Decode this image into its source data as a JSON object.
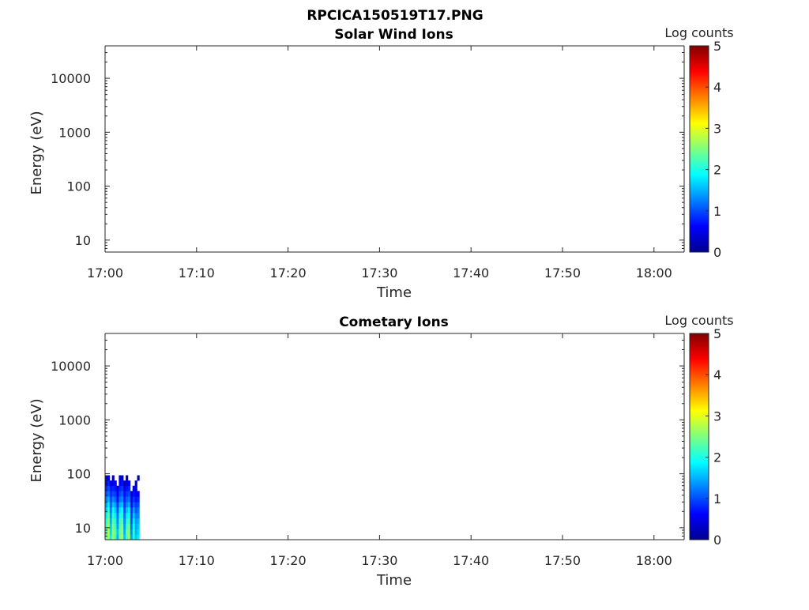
{
  "figure_title": "RPCICA150519T17.PNG",
  "chart_data": [
    {
      "type": "heatmap",
      "title": "Solar Wind Ions",
      "xlabel": "Time",
      "ylabel": "Energy (eV)",
      "x_unit": "minutes after 17:00",
      "xlim": [
        0,
        63.3
      ],
      "ylim": [
        6,
        40000
      ],
      "yscale": "log",
      "xticks": [
        0,
        10,
        20,
        30,
        40,
        50,
        60
      ],
      "xtick_labels": [
        "17:00",
        "17:10",
        "17:20",
        "17:30",
        "17:40",
        "17:50",
        "18:00"
      ],
      "yticks": [
        10,
        100,
        1000,
        10000
      ],
      "ytick_labels": [
        "10",
        "100",
        "1000",
        "10000"
      ],
      "colorbar": {
        "label": "Log counts",
        "range": [
          0,
          5
        ],
        "ticks": [
          "0",
          "1",
          "2",
          "3",
          "4",
          "5"
        ],
        "colormap": "jet"
      },
      "time_bins": [],
      "energy_bins": [],
      "values": []
    },
    {
      "type": "heatmap",
      "title": "Cometary Ions",
      "xlabel": "Time",
      "ylabel": "Energy (eV)",
      "x_unit": "minutes after 17:00",
      "xlim": [
        0,
        63.3
      ],
      "ylim": [
        6,
        40000
      ],
      "yscale": "log",
      "xticks": [
        0,
        10,
        20,
        30,
        40,
        50,
        60
      ],
      "xtick_labels": [
        "17:00",
        "17:10",
        "17:20",
        "17:30",
        "17:40",
        "17:50",
        "18:00"
      ],
      "yticks": [
        10,
        100,
        1000,
        10000
      ],
      "ytick_labels": [
        "10",
        "100",
        "1000",
        "10000"
      ],
      "colorbar": {
        "label": "Log counts",
        "range": [
          0,
          5
        ],
        "ticks": [
          "0",
          "1",
          "2",
          "3",
          "4",
          "5"
        ],
        "colormap": "jet"
      },
      "time_bins": [
        0,
        0.25,
        0.5,
        0.75,
        1.0,
        1.25,
        1.5,
        1.75,
        2.0,
        2.25,
        2.5,
        2.75,
        3.0,
        3.25,
        3.5
      ],
      "time_bin_width": 0.25,
      "energy_bins": [
        6,
        7.5,
        9.5,
        12,
        15,
        19,
        24,
        30,
        38,
        48,
        60,
        75
      ],
      "values": [
        [
          2.4,
          2.6,
          1.8,
          2.7,
          2.2,
          1.5,
          2.5,
          2.7,
          1.6,
          2.3,
          2.6,
          1.4,
          2.0,
          1.6,
          1.8
        ],
        [
          2.3,
          2.7,
          1.7,
          2.6,
          2.3,
          1.6,
          2.4,
          2.6,
          1.5,
          2.4,
          2.5,
          1.3,
          2.1,
          1.5,
          1.7
        ],
        [
          2.2,
          2.6,
          1.6,
          2.5,
          2.1,
          1.4,
          2.3,
          2.5,
          1.4,
          2.2,
          2.4,
          1.2,
          1.9,
          1.4,
          1.6
        ],
        [
          2.0,
          2.5,
          1.5,
          2.3,
          2.0,
          1.3,
          2.2,
          2.3,
          1.3,
          2.0,
          2.2,
          1.0,
          1.8,
          1.3,
          1.5
        ],
        [
          1.8,
          2.3,
          1.4,
          2.1,
          1.8,
          1.2,
          2.0,
          2.1,
          1.2,
          1.8,
          2.0,
          0.9,
          1.6,
          1.2,
          1.3
        ],
        [
          1.6,
          2.1,
          1.2,
          1.9,
          1.6,
          1.0,
          1.8,
          1.9,
          1.0,
          1.6,
          1.8,
          0.8,
          1.4,
          1.0,
          1.2
        ],
        [
          1.4,
          1.8,
          1.0,
          1.6,
          1.4,
          0.9,
          1.5,
          1.6,
          0.9,
          1.3,
          1.5,
          0.6,
          1.1,
          0.9,
          1.0
        ],
        [
          1.2,
          1.5,
          0.9,
          1.3,
          1.1,
          0.7,
          1.2,
          1.3,
          0.8,
          1.1,
          1.2,
          0.5,
          0.9,
          0.7,
          0.8
        ],
        [
          1.0,
          1.2,
          0.8,
          1.0,
          0.9,
          0.6,
          1.0,
          1.1,
          0.7,
          0.9,
          1.0,
          0.4,
          0.7,
          0.6,
          0.6
        ],
        [
          0.8,
          1.0,
          0.7,
          0.8,
          0.7,
          0.5,
          0.8,
          0.9,
          0.5,
          0.7,
          0.8,
          null,
          0.5,
          0.5,
          null
        ],
        [
          0.5,
          0.8,
          0.4,
          0.6,
          0.5,
          null,
          0.6,
          0.7,
          0.3,
          0.5,
          0.6,
          null,
          null,
          0.3,
          null
        ],
        [
          0.3,
          0.5,
          null,
          0.3,
          null,
          null,
          0.4,
          0.5,
          null,
          0.3,
          null,
          null,
          null,
          null,
          0.2
        ]
      ]
    }
  ]
}
